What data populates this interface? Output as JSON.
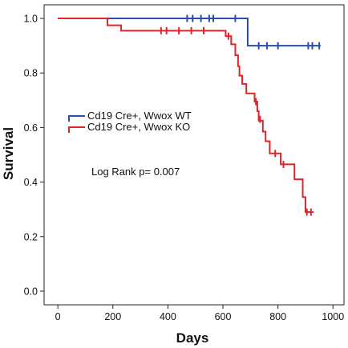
{
  "chart_data": {
    "type": "line",
    "subtype": "kaplan-meier survival curve",
    "xlabel": "Days",
    "ylabel": "Survival",
    "xlim": [
      -50,
      1040
    ],
    "ylim": [
      -0.05,
      1.05
    ],
    "x_ticks": [
      0,
      200,
      400,
      600,
      800,
      1000
    ],
    "x_tick_labels": [
      "0",
      "200",
      "400",
      "600",
      "800",
      "1000"
    ],
    "y_ticks": [
      0.0,
      0.2,
      0.4,
      0.6,
      0.8,
      1.0
    ],
    "y_tick_labels": [
      "0.0",
      "0.2",
      "0.4",
      "0.6",
      "0.8",
      "1.0"
    ],
    "grid": false,
    "legend_position": "middle-left",
    "annotation": "Log Rank p= 0.007",
    "series": [
      {
        "name": "Cd19 Cre+, Wwox WT",
        "color": "#2a4bb0",
        "steps": [
          [
            0,
            1.0
          ],
          [
            690,
            1.0
          ],
          [
            690,
            0.9
          ],
          [
            955,
            0.9
          ]
        ],
        "censored": [
          [
            470,
            1.0
          ],
          [
            490,
            1.0
          ],
          [
            520,
            1.0
          ],
          [
            550,
            1.0
          ],
          [
            565,
            1.0
          ],
          [
            645,
            1.0
          ],
          [
            730,
            0.9
          ],
          [
            760,
            0.9
          ],
          [
            800,
            0.9
          ],
          [
            910,
            0.9
          ],
          [
            925,
            0.9
          ],
          [
            950,
            0.9
          ]
        ]
      },
      {
        "name": "Cd19 Cre+, Wwox KO",
        "color": "#e0242a",
        "steps": [
          [
            0,
            1.0
          ],
          [
            180,
            1.0
          ],
          [
            180,
            0.975
          ],
          [
            230,
            0.975
          ],
          [
            230,
            0.955
          ],
          [
            610,
            0.955
          ],
          [
            610,
            0.935
          ],
          [
            630,
            0.935
          ],
          [
            630,
            0.905
          ],
          [
            645,
            0.905
          ],
          [
            645,
            0.865
          ],
          [
            655,
            0.865
          ],
          [
            655,
            0.825
          ],
          [
            660,
            0.825
          ],
          [
            660,
            0.79
          ],
          [
            670,
            0.79
          ],
          [
            670,
            0.76
          ],
          [
            685,
            0.76
          ],
          [
            685,
            0.725
          ],
          [
            715,
            0.725
          ],
          [
            715,
            0.695
          ],
          [
            725,
            0.695
          ],
          [
            725,
            0.66
          ],
          [
            730,
            0.66
          ],
          [
            730,
            0.625
          ],
          [
            745,
            0.625
          ],
          [
            745,
            0.585
          ],
          [
            755,
            0.585
          ],
          [
            755,
            0.55
          ],
          [
            770,
            0.55
          ],
          [
            770,
            0.505
          ],
          [
            810,
            0.505
          ],
          [
            810,
            0.465
          ],
          [
            860,
            0.465
          ],
          [
            860,
            0.41
          ],
          [
            890,
            0.41
          ],
          [
            890,
            0.345
          ],
          [
            900,
            0.345
          ],
          [
            900,
            0.29
          ],
          [
            930,
            0.29
          ]
        ],
        "censored": [
          [
            375,
            0.955
          ],
          [
            395,
            0.955
          ],
          [
            440,
            0.955
          ],
          [
            485,
            0.955
          ],
          [
            530,
            0.955
          ],
          [
            620,
            0.935
          ],
          [
            720,
            0.695
          ],
          [
            735,
            0.63
          ],
          [
            790,
            0.505
          ],
          [
            820,
            0.465
          ],
          [
            905,
            0.29
          ],
          [
            920,
            0.29
          ]
        ]
      }
    ]
  }
}
